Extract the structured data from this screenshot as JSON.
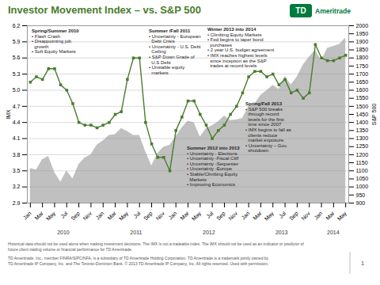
{
  "chart_data": {
    "type": "line",
    "title": "Investor Movement Index – vs. S&P 500",
    "categories": [
      "Jan",
      null,
      "Mar",
      null,
      "May",
      null,
      "Jul",
      null,
      "Sep",
      null,
      "Nov",
      null,
      "Jan",
      null,
      "Mar",
      null,
      "May",
      null,
      "Jul",
      null,
      "Sep",
      null,
      "Nov",
      null,
      "Jan",
      null,
      "Mar",
      null,
      "May",
      null,
      "Jul",
      null,
      "Sep",
      null,
      "Nov",
      null,
      "Jan",
      null,
      "Mar",
      null,
      "May",
      null,
      "Jul",
      null,
      "Sep",
      null,
      "Nov",
      null,
      "Jan",
      null,
      "Mar",
      null,
      "May"
    ],
    "years": [
      "2010",
      "2011",
      "2012",
      "2013",
      "2014"
    ],
    "series": [
      {
        "type": "line",
        "color": "#4a7c2f",
        "marker": "square",
        "values": [
          5.15,
          5.25,
          5.2,
          5.4,
          5.4,
          5.1,
          5.0,
          4.75,
          4.4,
          4.35,
          4.35,
          4.3,
          4.35,
          4.4,
          4.55,
          4.6,
          5.2,
          5.6,
          5.6,
          4.4,
          4.0,
          3.75,
          3.75,
          3.5,
          4.25,
          4.5,
          4.8,
          4.8,
          4.55,
          4.35,
          4.1,
          4.25,
          4.35,
          4.55,
          4.7,
          4.95,
          5.25,
          5.35,
          5.35,
          5.25,
          5.3,
          5.1,
          5.2,
          4.95,
          5.0,
          4.85,
          4.95,
          5.85,
          5.6,
          5.55,
          5.55,
          5.6,
          5.65
        ]
      },
      {
        "type": "area",
        "color": "#c0c0c0",
        "axis": "y2",
        "values": [
          1115,
          1105,
          1170,
          1190,
          1090,
          1030,
          1100,
          1050,
          1140,
          1180,
          1200,
          1260,
          1285,
          1320,
          1325,
          1363,
          1345,
          1320,
          1320,
          1220,
          1131,
          1207,
          1247,
          1258,
          1312,
          1366,
          1408,
          1398,
          1310,
          1362,
          1380,
          1404,
          1440,
          1412,
          1416,
          1426,
          1498,
          1514,
          1569,
          1597,
          1631,
          1606,
          1686,
          1633,
          1682,
          1757,
          1806,
          1848,
          1783,
          1860,
          1872,
          1884,
          1924
        ]
      }
    ],
    "ylabel": "IMX",
    "y2label": "S&P 500",
    "ylim": [
      2.9,
      6.2
    ],
    "yticks": [
      2.9,
      3.2,
      3.5,
      3.8,
      4.1,
      4.4,
      4.7,
      {
        "value": 5,
        "label": "5.0"
      },
      5.3,
      5.6,
      5.9,
      6.2
    ],
    "y2lim": [
      900,
      2000
    ],
    "y2ticks": [
      900,
      950,
      1000,
      1050,
      1100,
      1150,
      1200,
      1250,
      1300,
      1350,
      1400,
      1450,
      1500,
      1550,
      1600,
      1650,
      1700,
      1750,
      1800,
      1850,
      1900,
      1950,
      2000
    ],
    "grid": true,
    "annotations": [
      "Spring/Summer 2010\n• Flash Crash\n• Disappointing job\n  growth\n• Soft Equity Markets",
      "Summer /Fall 2011\n• Uncertainty - European\n  Debt Crisis\n• Uncertainty - U.S. Debt\n  Ceiling\n• S&P Down Grade of\n  U.S Debt\n• Unstable equity\n  markets",
      "Summer 2012 into 2013\n• Uncertainty - Elections\n• Uncertainty -Fiscal Cliff\n• Uncertainty -Sequester\n• Uncertainty -Europe\n• Stable/Climbing Equity\n  Markets\n• Improving Economics",
      "Spring/Fall 2013\n• S&P 500 breaks\n  through record\n  levels for the first\n  time since 2007\n• IMX begins to fall as\n  clients reduce\n  market exposure.\n• Uncertainty – Gov.\n  shutdown",
      "Winter 2013 into 2014\n• Climbing Equity Markets\n• Fed begins to taper bond\n  purchases\n• 2 year U.S. budget agreement\n• IMX reaches highest levels\n  since inception as the S&P\n  trades at record levels"
    ],
    "footnotes": [
      "Historical data should not be used alone when making investment decisions. The IMX is not a tradeable index. The IMX should not be used as an indicator or predictor of",
      "future client trading volume or financial performance for TD Ameritrade.",
      "TD Ameritrade, Inc., member FINRA/SIPC/NFA, is a subsidiary of TD Ameritrade Holding Corporation. TD Ameritrade is a trademark jointly owned by",
      "TD Ameritrade IP Company, Inc. and The Toronto-Dominion Bank. © 2013 TD Ameritrade IP Company, Inc. All rights reserved. Used with permission."
    ],
    "logo": {
      "mark": "TD",
      "text": "Ameritrade",
      "color": "#007a3d"
    },
    "page_number": 1
  }
}
